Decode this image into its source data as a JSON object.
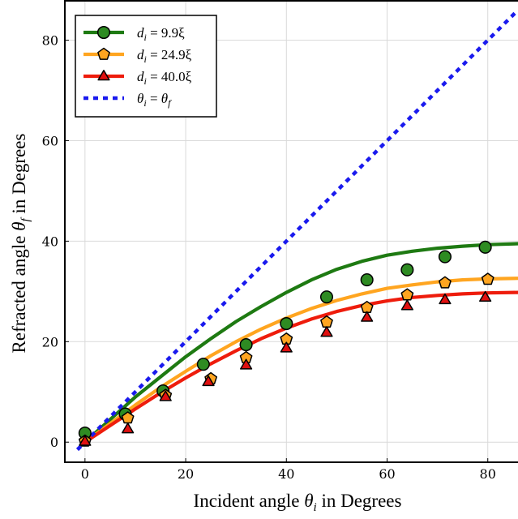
{
  "chart_data": {
    "type": "line",
    "xlabel": "Incident angle θ_i in Degrees",
    "ylabel": "Refracted angle θ_f in Degrees",
    "xlabel_parts": {
      "pre": "Incident angle ",
      "sym": "θ",
      "sub": "i",
      "post": " in Degrees"
    },
    "ylabel_parts": {
      "pre": "Refracted angle ",
      "sym": "θ",
      "sub": "f",
      "post": " in Degrees"
    },
    "xlim": [
      -4,
      86
    ],
    "ylim": [
      -4,
      88
    ],
    "x_ticks": [
      0,
      20,
      40,
      60,
      80
    ],
    "y_ticks": [
      0,
      20,
      40,
      60,
      80
    ],
    "grid": true,
    "legend_position": "top-left",
    "series": [
      {
        "name": "d_i = 9.9ξ",
        "legend": {
          "sym": "d",
          "sub": "i",
          "rest": " = 9.9ξ"
        },
        "color": "#1e7a12",
        "marker": "circle",
        "marker_fill": "#2e8b22",
        "curve_x": [
          0,
          5,
          10,
          15,
          20,
          25,
          30,
          35,
          40,
          45,
          50,
          55,
          60,
          65,
          70,
          75,
          80,
          86
        ],
        "curve_y": [
          0,
          4.5,
          9.0,
          13.0,
          17.0,
          20.6,
          24.0,
          27.0,
          29.8,
          32.3,
          34.4,
          36.0,
          37.2,
          38.0,
          38.6,
          39.0,
          39.3,
          39.5
        ],
        "points_x": [
          0,
          8,
          15.5,
          23.5,
          32,
          40,
          48,
          56,
          64,
          71.5,
          79.5
        ],
        "points_y": [
          1.8,
          5.6,
          10.2,
          15.5,
          19.4,
          23.6,
          28.9,
          32.3,
          34.3,
          36.9,
          38.8
        ]
      },
      {
        "name": "d_i = 24.9ξ",
        "legend": {
          "sym": "d",
          "sub": "i",
          "rest": " = 24.9ξ"
        },
        "color": "#ffa520",
        "marker": "pentagon",
        "marker_fill": "#ffa520",
        "curve_x": [
          0,
          5,
          10,
          15,
          20,
          25,
          30,
          35,
          40,
          45,
          50,
          55,
          60,
          65,
          70,
          75,
          80,
          86
        ],
        "curve_y": [
          0,
          3.7,
          7.4,
          10.9,
          14.1,
          17.2,
          20.0,
          22.5,
          24.7,
          26.6,
          28.2,
          29.5,
          30.6,
          31.3,
          31.9,
          32.3,
          32.5,
          32.6
        ],
        "points_x": [
          0,
          8.5,
          16,
          25,
          32,
          40,
          48,
          56,
          64,
          71.5,
          80
        ],
        "points_y": [
          0.2,
          4.8,
          9.3,
          12.6,
          16.8,
          20.5,
          23.9,
          26.8,
          29.3,
          31.7,
          32.4
        ]
      },
      {
        "name": "d_i = 40.0ξ",
        "legend": {
          "sym": "d",
          "sub": "i",
          "rest": " = 40.0ξ"
        },
        "color": "#ee1c0c",
        "marker": "triangle",
        "marker_fill": "#e01010",
        "curve_x": [
          0,
          5,
          10,
          15,
          20,
          25,
          30,
          35,
          40,
          45,
          50,
          55,
          60,
          65,
          70,
          75,
          80,
          86
        ],
        "curve_y": [
          0,
          3.3,
          6.6,
          9.8,
          12.8,
          15.6,
          18.2,
          20.6,
          22.7,
          24.5,
          26.0,
          27.2,
          28.1,
          28.8,
          29.2,
          29.5,
          29.7,
          29.8
        ],
        "points_x": [
          0,
          8.5,
          16,
          24.5,
          32,
          40,
          48,
          56,
          64,
          71.5,
          79.5
        ],
        "points_y": [
          0.1,
          2.6,
          9.0,
          12.0,
          15.3,
          18.7,
          21.8,
          24.8,
          27.1,
          28.3,
          28.8
        ]
      },
      {
        "name": "θ_i = θ_f",
        "legend": {
          "sym": "θ",
          "sub": "i",
          "rest": " = ",
          "sym2": "θ",
          "sub2": "f"
        },
        "color": "#1a1aee",
        "style": "dotted",
        "curve_x": [
          -1.5,
          86
        ],
        "curve_y": [
          -1.5,
          86
        ]
      }
    ]
  }
}
